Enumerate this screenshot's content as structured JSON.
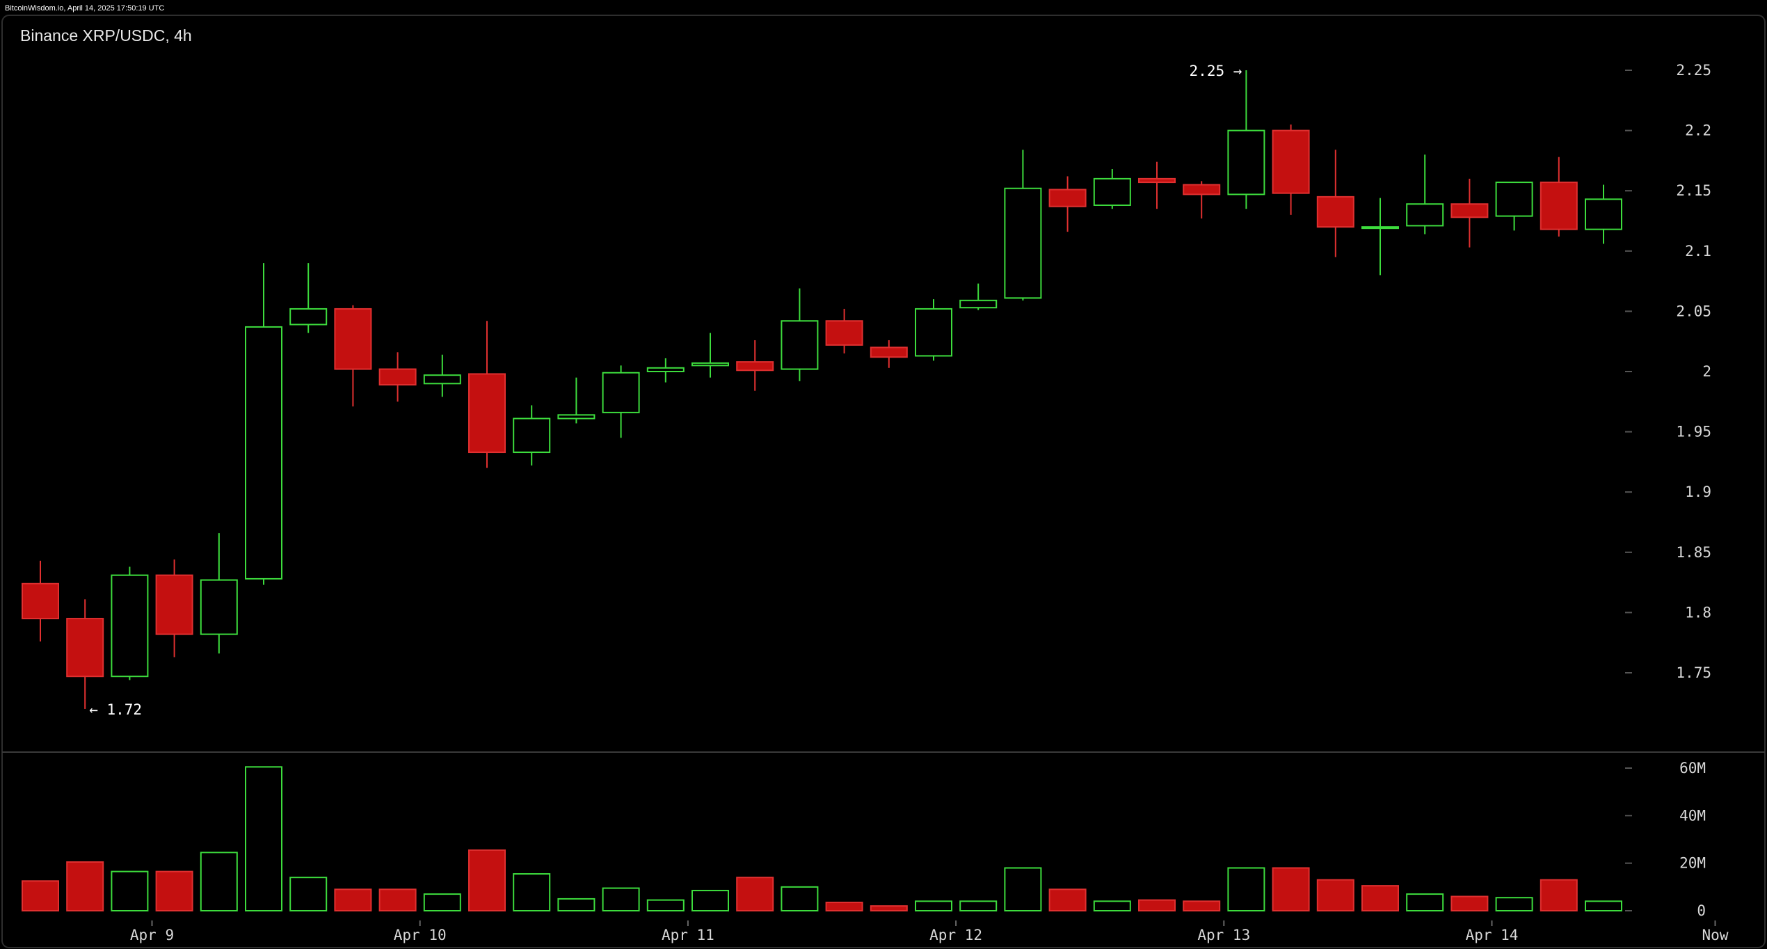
{
  "header": {
    "attribution": "BitcoinWisdom.io, April 14, 2025 17:50:19 UTC",
    "title": "Binance XRP/USDC, 4h"
  },
  "colors": {
    "up": "#3ddc3d",
    "down": "#c41010",
    "down_border": "#e03030",
    "background": "#000000",
    "panel_border": "#2e2e2e",
    "text": "#d8d8d8"
  },
  "chart_data": [
    {
      "type": "candlestick",
      "title": "Binance XRP/USDC, 4h",
      "xlabel": "",
      "ylabel": "",
      "ylim": [
        1.72,
        2.25
      ],
      "y_ticks": [
        "2.25",
        "2.2",
        "2.15",
        "2.1",
        "2.05",
        "2",
        "1.95",
        "1.9",
        "1.85",
        "1.8",
        "1.75"
      ],
      "y_tick_values": [
        2.25,
        2.2,
        2.15,
        2.1,
        2.05,
        2.0,
        1.95,
        1.9,
        1.85,
        1.8,
        1.75
      ],
      "x_ticks": [
        "Apr 9",
        "Apr 10",
        "Apr 11",
        "Apr 12",
        "Apr 13",
        "Apr 14",
        "Now"
      ],
      "x_tick_index": [
        2.5,
        8.5,
        14.5,
        20.5,
        26.5,
        32.5,
        37.5
      ],
      "grid": false,
      "annotations": [
        {
          "text": "2.25 →",
          "value": 2.25,
          "candle": 27
        },
        {
          "text": "← 1.72",
          "value": 1.72,
          "candle": 1
        }
      ],
      "candles": [
        {
          "open": 1.824,
          "high": 1.843,
          "low": 1.776,
          "close": 1.795
        },
        {
          "open": 1.795,
          "high": 1.811,
          "low": 1.72,
          "close": 1.747
        },
        {
          "open": 1.747,
          "high": 1.838,
          "low": 1.744,
          "close": 1.831
        },
        {
          "open": 1.831,
          "high": 1.844,
          "low": 1.763,
          "close": 1.782
        },
        {
          "open": 1.782,
          "high": 1.866,
          "low": 1.766,
          "close": 1.827
        },
        {
          "open": 1.828,
          "high": 2.09,
          "low": 1.823,
          "close": 2.037
        },
        {
          "open": 2.039,
          "high": 2.09,
          "low": 2.032,
          "close": 2.052
        },
        {
          "open": 2.052,
          "high": 2.055,
          "low": 1.971,
          "close": 2.002
        },
        {
          "open": 2.002,
          "high": 2.016,
          "low": 1.975,
          "close": 1.989
        },
        {
          "open": 1.99,
          "high": 2.014,
          "low": 1.979,
          "close": 1.997
        },
        {
          "open": 1.998,
          "high": 2.042,
          "low": 1.92,
          "close": 1.933
        },
        {
          "open": 1.933,
          "high": 1.972,
          "low": 1.922,
          "close": 1.961
        },
        {
          "open": 1.961,
          "high": 1.995,
          "low": 1.957,
          "close": 1.964
        },
        {
          "open": 1.966,
          "high": 2.005,
          "low": 1.945,
          "close": 1.999
        },
        {
          "open": 2.0,
          "high": 2.011,
          "low": 1.991,
          "close": 2.003
        },
        {
          "open": 2.005,
          "high": 2.032,
          "low": 1.995,
          "close": 2.007
        },
        {
          "open": 2.008,
          "high": 2.026,
          "low": 1.984,
          "close": 2.001
        },
        {
          "open": 2.002,
          "high": 2.069,
          "low": 1.992,
          "close": 2.042
        },
        {
          "open": 2.042,
          "high": 2.052,
          "low": 2.015,
          "close": 2.022
        },
        {
          "open": 2.02,
          "high": 2.026,
          "low": 2.003,
          "close": 2.012
        },
        {
          "open": 2.013,
          "high": 2.06,
          "low": 2.009,
          "close": 2.052
        },
        {
          "open": 2.053,
          "high": 2.073,
          "low": 2.051,
          "close": 2.059
        },
        {
          "open": 2.061,
          "high": 2.184,
          "low": 2.059,
          "close": 2.152
        },
        {
          "open": 2.151,
          "high": 2.162,
          "low": 2.116,
          "close": 2.137
        },
        {
          "open": 2.138,
          "high": 2.168,
          "low": 2.135,
          "close": 2.16
        },
        {
          "open": 2.16,
          "high": 2.174,
          "low": 2.135,
          "close": 2.157
        },
        {
          "open": 2.155,
          "high": 2.158,
          "low": 2.127,
          "close": 2.147
        },
        {
          "open": 2.147,
          "high": 2.25,
          "low": 2.135,
          "close": 2.2
        },
        {
          "open": 2.2,
          "high": 2.205,
          "low": 2.13,
          "close": 2.148
        },
        {
          "open": 2.145,
          "high": 2.184,
          "low": 2.095,
          "close": 2.12
        },
        {
          "open": 2.12,
          "high": 2.144,
          "low": 2.08,
          "close": 2.12
        },
        {
          "open": 2.121,
          "high": 2.18,
          "low": 2.114,
          "close": 2.139
        },
        {
          "open": 2.139,
          "high": 2.16,
          "low": 2.103,
          "close": 2.128
        },
        {
          "open": 2.129,
          "high": 2.156,
          "low": 2.117,
          "close": 2.157
        },
        {
          "open": 2.157,
          "high": 2.178,
          "low": 2.112,
          "close": 2.118
        },
        {
          "open": 2.118,
          "high": 2.155,
          "low": 2.106,
          "close": 2.143
        }
      ]
    },
    {
      "type": "bar",
      "title": "",
      "xlabel": "",
      "ylabel": "",
      "ylim": [
        0,
        60000000
      ],
      "y_ticks": [
        "60M",
        "40M",
        "20M",
        "0"
      ],
      "y_tick_values": [
        60000000,
        40000000,
        20000000,
        0
      ],
      "grid": false,
      "values": [
        12500000,
        20500000,
        16500000,
        16500000,
        24500000,
        60500000,
        14000000,
        9000000,
        9000000,
        7000000,
        25500000,
        15500000,
        5000000,
        9500000,
        4500000,
        8500000,
        14000000,
        10000000,
        3500000,
        2000000,
        4000000,
        4000000,
        18000000,
        9000000,
        4000000,
        4500000,
        4000000,
        18000000,
        18000000,
        13000000,
        10500000,
        7000000,
        6000000,
        5500000,
        13000000,
        4000000
      ],
      "direction": [
        "down",
        "down",
        "up",
        "down",
        "up",
        "up",
        "up",
        "down",
        "down",
        "up",
        "down",
        "up",
        "up",
        "up",
        "up",
        "up",
        "down",
        "up",
        "down",
        "down",
        "up",
        "up",
        "up",
        "down",
        "up",
        "down",
        "down",
        "up",
        "down",
        "down",
        "down",
        "up",
        "down",
        "up",
        "down",
        "up"
      ]
    }
  ]
}
